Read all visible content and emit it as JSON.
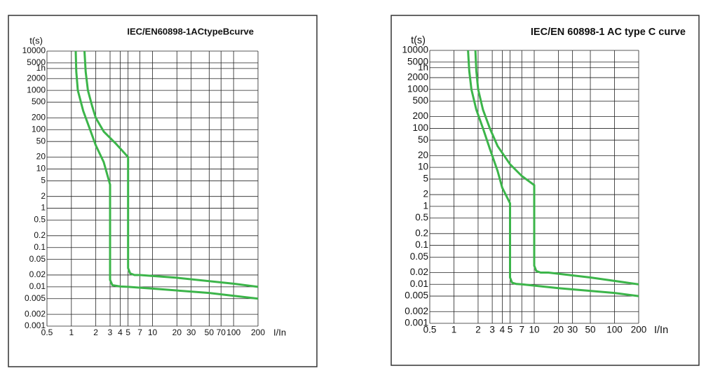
{
  "chart_data": [
    {
      "type": "line",
      "title": "IEC/EN60898-1ACtypeBcurve",
      "y_label": "t(s)",
      "x_label": "I/In",
      "xscale": "log",
      "yscale": "log",
      "grid": true,
      "xlim": [
        0.5,
        200
      ],
      "ylim": [
        0.001,
        10000
      ],
      "xticks": [
        0.5,
        1,
        2,
        3,
        4,
        5,
        7,
        10,
        20,
        30,
        50,
        70,
        100,
        200
      ],
      "yticks": [
        10000,
        5000,
        {
          "value": 3600,
          "label": "1h"
        },
        2000,
        1000,
        500,
        200,
        100,
        50,
        20,
        10,
        5,
        2,
        1,
        0.5,
        0.2,
        0.1,
        0.05,
        0.02,
        0.01,
        0.005,
        0.002,
        0.001
      ],
      "series": [
        {
          "color": "#3cb54a",
          "x": [
            1.13,
            1.15,
            1.2,
            1.4,
            1.7,
            2,
            2.5,
            3,
            3,
            3.2,
            4,
            5,
            10,
            50,
            200
          ],
          "values": [
            10000,
            3000,
            1000,
            300,
            100,
            40,
            15,
            4,
            0.015,
            0.011,
            0.0102,
            0.01,
            0.009,
            0.007,
            0.005
          ]
        },
        {
          "color": "#3cb54a",
          "x": [
            1.45,
            1.5,
            1.6,
            1.8,
            2,
            2.5,
            3.5,
            5,
            5,
            5.3,
            6,
            7,
            20,
            100,
            200
          ],
          "values": [
            10000,
            3000,
            1000,
            400,
            200,
            90,
            45,
            20,
            0.03,
            0.022,
            0.02,
            0.02,
            0.017,
            0.012,
            0.01
          ]
        }
      ]
    },
    {
      "type": "line",
      "title": "IEC/EN 60898-1 AC type C curve",
      "y_label": "t(s)",
      "x_label": "I/In",
      "xscale": "log",
      "yscale": "log",
      "grid": true,
      "xlim": [
        0.5,
        200
      ],
      "ylim": [
        0.001,
        10000
      ],
      "xticks": [
        0.5,
        1,
        2,
        3,
        4,
        5,
        7,
        10,
        20,
        30,
        50,
        100,
        200
      ],
      "yticks": [
        10000,
        5000,
        {
          "value": 3600,
          "label": "1h"
        },
        2000,
        1000,
        500,
        200,
        100,
        50,
        20,
        10,
        5,
        2,
        1,
        0.5,
        0.2,
        0.1,
        0.05,
        0.02,
        0.01,
        0.005,
        0.002,
        0.001
      ],
      "series": [
        {
          "color": "#3cb54a",
          "x": [
            1.5,
            1.55,
            1.65,
            1.9,
            2.3,
            2.8,
            3.5,
            4,
            5,
            5,
            5.3,
            6,
            7,
            20,
            100,
            200
          ],
          "values": [
            10000,
            3000,
            1000,
            300,
            100,
            30,
            8,
            3,
            1.2,
            0.015,
            0.011,
            0.0102,
            0.01,
            0.008,
            0.006,
            0.005
          ]
        },
        {
          "color": "#3cb54a",
          "x": [
            1.85,
            1.9,
            2,
            2.3,
            2.8,
            3.5,
            5,
            7,
            10,
            10,
            10.6,
            12,
            15,
            50,
            200
          ],
          "values": [
            10000,
            3000,
            1000,
            300,
            100,
            35,
            12,
            6,
            3.5,
            0.03,
            0.022,
            0.02,
            0.02,
            0.015,
            0.01
          ]
        }
      ]
    }
  ]
}
